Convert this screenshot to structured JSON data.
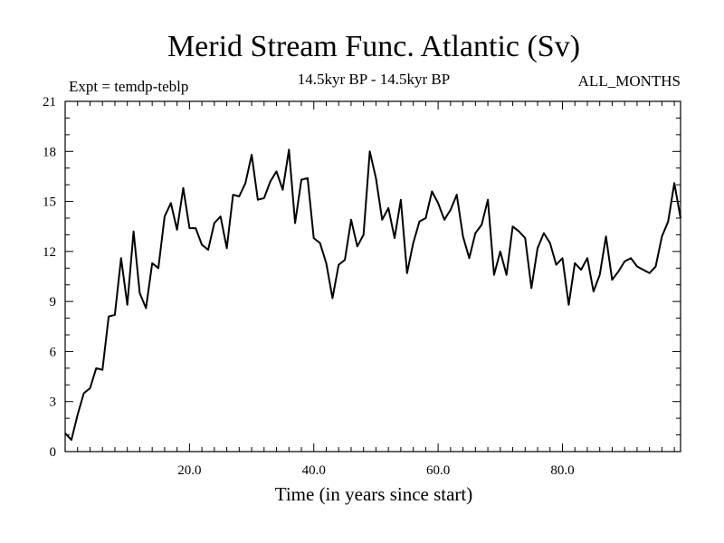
{
  "chart_data": {
    "type": "line",
    "title": "Merid Stream Func. Atlantic (Sv)",
    "subtitle": "14.5kyr BP - 14.5kyr BP",
    "left_label": "Expt = temdp-teblp",
    "right_label": "ALL_MONTHS",
    "xlabel": "Time (in years since start)",
    "ylabel": "",
    "xlim": [
      0,
      99
    ],
    "ylim": [
      0,
      21
    ],
    "x_ticks": [
      20,
      40,
      60,
      80
    ],
    "x_tick_labels": [
      "20.0",
      "40.0",
      "60.0",
      "80.0"
    ],
    "y_ticks": [
      0,
      3,
      6,
      9,
      12,
      15,
      18,
      21
    ],
    "y_tick_labels": [
      "0",
      "3",
      "6",
      "9",
      "12",
      "15",
      "18",
      "21"
    ],
    "grid": false,
    "series": [
      {
        "name": "temdp-teblp",
        "x": [
          0,
          1,
          2,
          3,
          4,
          5,
          6,
          7,
          8,
          9,
          10,
          11,
          12,
          13,
          14,
          15,
          16,
          17,
          18,
          19,
          20,
          21,
          22,
          23,
          24,
          25,
          26,
          27,
          28,
          29,
          30,
          31,
          32,
          33,
          34,
          35,
          36,
          37,
          38,
          39,
          40,
          41,
          42,
          43,
          44,
          45,
          46,
          47,
          48,
          49,
          50,
          51,
          52,
          53,
          54,
          55,
          56,
          57,
          58,
          59,
          60,
          61,
          62,
          63,
          64,
          65,
          66,
          67,
          68,
          69,
          70,
          71,
          72,
          73,
          74,
          75,
          76,
          77,
          78,
          79,
          80,
          81,
          82,
          83,
          84,
          85,
          86,
          87,
          88,
          89,
          90,
          91,
          92,
          93,
          94,
          95,
          96,
          97,
          98,
          99
        ],
        "values": [
          1.1,
          0.7,
          2.2,
          3.5,
          3.8,
          5.0,
          4.9,
          8.1,
          8.2,
          11.6,
          8.8,
          13.2,
          9.5,
          8.6,
          11.3,
          11.0,
          14.1,
          14.9,
          13.3,
          15.8,
          13.4,
          13.4,
          12.4,
          12.1,
          13.7,
          14.1,
          12.2,
          15.4,
          15.3,
          16.1,
          17.8,
          15.1,
          15.2,
          16.2,
          16.8,
          15.7,
          18.1,
          13.7,
          16.3,
          16.4,
          12.8,
          12.5,
          11.3,
          9.2,
          11.2,
          11.5,
          13.9,
          12.3,
          13.0,
          18.0,
          16.4,
          13.9,
          14.6,
          12.8,
          15.1,
          10.7,
          12.5,
          13.8,
          14.0,
          15.6,
          14.9,
          13.9,
          14.5,
          15.4,
          12.9,
          11.6,
          13.1,
          13.6,
          15.1,
          10.6,
          12.0,
          10.6,
          13.5,
          13.2,
          12.8,
          9.8,
          12.2,
          13.1,
          12.5,
          11.2,
          11.6,
          8.8,
          11.3,
          10.9,
          11.6,
          9.6,
          10.6,
          12.9,
          10.3,
          10.8,
          11.4,
          11.6,
          11.1,
          10.9,
          10.7,
          11.1,
          12.9,
          13.8,
          16.1,
          14.0
        ]
      }
    ]
  }
}
